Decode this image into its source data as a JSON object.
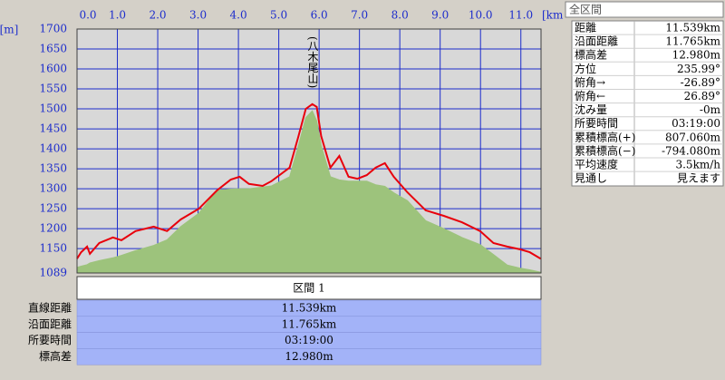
{
  "chart_data": {
    "type": "area-line",
    "x_unit": "[km]",
    "y_unit": "[m]",
    "annotation": "(八木尾山)",
    "x": [
      0,
      0.1,
      0.25,
      0.32,
      0.55,
      0.89,
      1.1,
      1.45,
      1.9,
      2.23,
      2.57,
      3.02,
      3.47,
      3.81,
      4.03,
      4.26,
      4.6,
      4.82,
      5.27,
      5.49,
      5.67,
      5.83,
      5.94,
      6.05,
      6.28,
      6.5,
      6.73,
      6.95,
      7.18,
      7.4,
      7.63,
      7.85,
      8.19,
      8.64,
      9.09,
      9.54,
      9.99,
      10.32,
      10.66,
      10.99,
      11.22,
      11.49
    ],
    "series": [
      {
        "kind": "area",
        "color": "#9dc37c",
        "values": [
          1103,
          1106,
          1110,
          1114,
          1120,
          1127,
          1133,
          1145,
          1158,
          1172,
          1205,
          1239,
          1296,
          1299,
          1300,
          1300,
          1304,
          1307,
          1330,
          1409,
          1478,
          1495,
          1470,
          1409,
          1330,
          1322,
          1319,
          1319,
          1319,
          1310,
          1306,
          1290,
          1270,
          1220,
          1200,
          1178,
          1160,
          1135,
          1109,
          1101,
          1097,
          1091
        ]
      },
      {
        "kind": "line",
        "color": "#e8000c",
        "values": [
          1125,
          1141,
          1155,
          1137,
          1164,
          1178,
          1171,
          1194,
          1205,
          1194,
          1223,
          1250,
          1296,
          1323,
          1330,
          1312,
          1307,
          1319,
          1353,
          1432,
          1500,
          1512,
          1505,
          1432,
          1353,
          1382,
          1330,
          1325,
          1334,
          1353,
          1364,
          1330,
          1291,
          1246,
          1232,
          1216,
          1194,
          1164,
          1155,
          1148,
          1141,
          1125
        ]
      }
    ],
    "xlim": [
      0,
      11.5
    ],
    "ylim": [
      1089,
      1700
    ],
    "xticks": [
      {
        "value": 0,
        "label": "0.0"
      },
      {
        "value": 1,
        "label": "1.0"
      },
      {
        "value": 2,
        "label": "2.0"
      },
      {
        "value": 3,
        "label": "3.0"
      },
      {
        "value": 4,
        "label": "4.0"
      },
      {
        "value": 5,
        "label": "5.0"
      },
      {
        "value": 6,
        "label": "6.0"
      },
      {
        "value": 7,
        "label": "7.0"
      },
      {
        "value": 8,
        "label": "8.0"
      },
      {
        "value": 9,
        "label": "9.0"
      },
      {
        "value": 10,
        "label": "10.0"
      },
      {
        "value": 11,
        "label": "11.0"
      }
    ],
    "yticks": [
      1089,
      1150,
      1200,
      1250,
      1300,
      1350,
      1400,
      1450,
      1500,
      1550,
      1600,
      1650,
      1700
    ],
    "grid": true
  },
  "summary_panel": {
    "title": "全区間",
    "rows": [
      [
        "距離",
        "11.539km"
      ],
      [
        "沿面距離",
        "11.765km"
      ],
      [
        "標高差",
        "12.980m"
      ],
      [
        "方位",
        "235.99°"
      ],
      [
        "俯角→",
        "-26.89°"
      ],
      [
        "俯角←",
        "26.89°"
      ],
      [
        "沈み量",
        "-0m"
      ],
      [
        "所要時間",
        "03:19:00"
      ],
      [
        "累積標高(+)",
        "807.060m"
      ],
      [
        "累積標高(−)",
        "-794.080m"
      ],
      [
        "平均速度",
        "3.5km/h"
      ],
      [
        "見通し",
        "見えます"
      ]
    ]
  },
  "section_panel": {
    "title": "区間 1",
    "rows": [
      [
        "直線距離",
        "11.539km"
      ],
      [
        "沿面距離",
        "11.765km"
      ],
      [
        "所要時間",
        "03:19:00"
      ],
      [
        "標高差",
        "12.980m"
      ]
    ]
  }
}
